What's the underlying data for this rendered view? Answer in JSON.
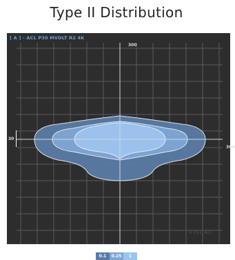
{
  "page_title": "Type II Distribution",
  "panel_header": "[ A ] - ACL P30 MVOLT R2 4K",
  "watermark": "VISUAL",
  "colors": {
    "background": "#2d2d2d",
    "grid": "#5a5a5a",
    "outer": "#5a7ba6",
    "middle": "#7ea6d4",
    "inner": "#9cc4ee",
    "contour_line": "#e8eef6",
    "header": "#6aa3d8"
  },
  "chart_data": {
    "type": "heatmap",
    "title": "Type II Distribution",
    "top_label": "300",
    "right_label": "300",
    "left_label": "30",
    "grid": true,
    "legend_placement": "bottom-center",
    "legend": [
      {
        "label": "0.1",
        "color": "#5a7ba6"
      },
      {
        "label": "0.25",
        "color": "#7ea6d4"
      },
      {
        "label": "1",
        "color": "#9cc4ee"
      }
    ]
  }
}
